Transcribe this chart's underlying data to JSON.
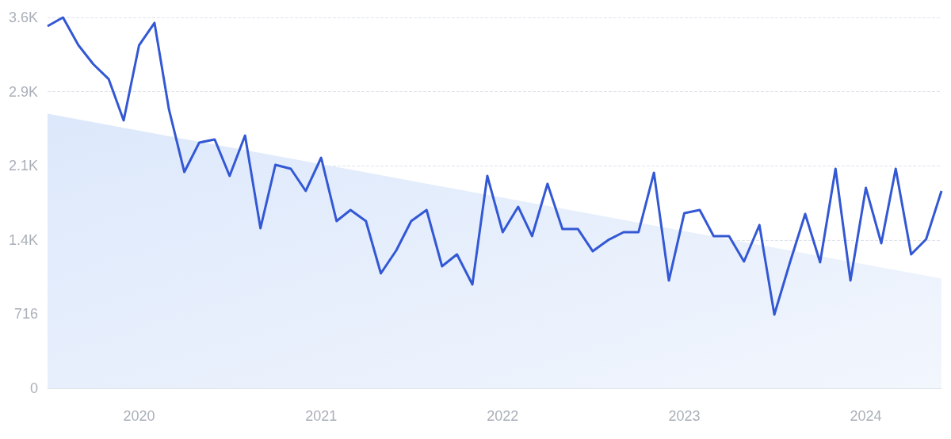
{
  "chart_data": {
    "type": "line",
    "x": [
      "2019-07",
      "2019-08",
      "2019-09",
      "2019-10",
      "2019-11",
      "2019-12",
      "2020-01",
      "2020-02",
      "2020-03",
      "2020-04",
      "2020-05",
      "2020-06",
      "2020-07",
      "2020-08",
      "2020-09",
      "2020-10",
      "2020-11",
      "2020-12",
      "2021-01",
      "2021-02",
      "2021-03",
      "2021-04",
      "2021-05",
      "2021-06",
      "2021-07",
      "2021-08",
      "2021-09",
      "2021-10",
      "2021-11",
      "2021-12",
      "2022-01",
      "2022-02",
      "2022-03",
      "2022-04",
      "2022-05",
      "2022-06",
      "2022-07",
      "2022-08",
      "2022-09",
      "2022-10",
      "2022-11",
      "2022-12",
      "2023-01",
      "2023-02",
      "2023-03",
      "2023-04",
      "2023-05",
      "2023-06",
      "2023-07",
      "2023-08",
      "2023-09",
      "2023-10",
      "2023-11",
      "2023-12",
      "2024-01",
      "2024-02",
      "2024-03",
      "2024-04",
      "2024-05",
      "2024-06"
    ],
    "series": [
      {
        "type": "area",
        "color": "#dce8fb",
        "x": [
          "2019-07",
          "2024-06"
        ],
        "values": [
          2650,
          1060
        ]
      },
      {
        "color": "#3358d4",
        "values": [
          3496,
          3580,
          3312,
          3129,
          2984,
          2586,
          3312,
          3527,
          2693,
          2088,
          2372,
          2402,
          2050,
          2440,
          1545,
          2157,
          2119,
          1905,
          2226,
          1614,
          1721,
          1614,
          1109,
          1331,
          1614,
          1721,
          1178,
          1293,
          1002,
          2050,
          1507,
          1752,
          1469,
          1974,
          1538,
          1538,
          1323,
          1431,
          1507,
          1507,
          2081,
          1040,
          1691,
          1721,
          1469,
          1469,
          1224,
          1576,
          711,
          1209,
          1683,
          1216,
          2119,
          1040,
          1935,
          1400,
          2119,
          1293,
          1438,
          1905
        ]
      }
    ],
    "xlim": [
      "2019-07",
      "2024-06"
    ],
    "xticks": [
      "2020",
      "2021",
      "2022",
      "2023",
      "2024"
    ],
    "ylim": [
      0,
      3580
    ],
    "yticks": [
      0,
      716,
      {
        "value": 1432,
        "label": "1.4K"
      },
      {
        "value": 2148,
        "label": "2.1K"
      },
      {
        "value": 2864,
        "label": "2.9K"
      },
      {
        "value": 3580,
        "label": "3.6K"
      }
    ],
    "grid": "y",
    "marker": "none",
    "line_style": "solid"
  }
}
